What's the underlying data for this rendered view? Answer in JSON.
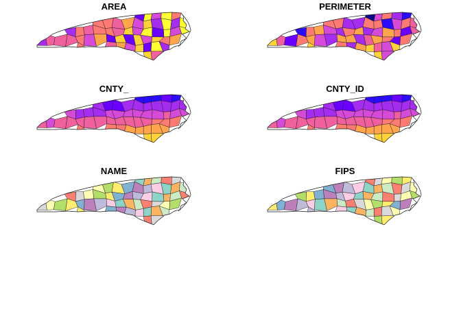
{
  "figure": {
    "panels": [
      {
        "id": "area",
        "title": "AREA",
        "palette": "sf_continuous",
        "variable": "AREA"
      },
      {
        "id": "perimeter",
        "title": "PERIMETER",
        "palette": "sf_continuous",
        "variable": "PERIMETER"
      },
      {
        "id": "cnty",
        "title": "CNTY_",
        "palette": "sf_continuous",
        "variable": "CNTY_"
      },
      {
        "id": "cnty_id",
        "title": "CNTY_ID",
        "palette": "sf_continuous",
        "variable": "CNTY_ID"
      },
      {
        "id": "name",
        "title": "NAME",
        "palette": "pastel_categorical",
        "variable": "NAME"
      },
      {
        "id": "fips",
        "title": "FIPS",
        "palette": "pastel_categorical",
        "variable": "FIPS"
      }
    ]
  },
  "colors": {
    "background": "#ffffff",
    "border": "#1a1a1a",
    "sf_continuous": [
      "#0d0887",
      "#2a0bff",
      "#6a00ff",
      "#a62cf0",
      "#d64ad8",
      "#f0609e",
      "#ff7a72",
      "#ffa64d",
      "#ffd23a",
      "#ffff33"
    ],
    "pastel_categorical": [
      "#8dd3c7",
      "#ffffb3",
      "#bebada",
      "#fb8072",
      "#80b1d3",
      "#fdb462",
      "#b3de69",
      "#fccde5",
      "#d9d9d9",
      "#bc80bd",
      "#ccebc5",
      "#ffed6f"
    ]
  }
}
